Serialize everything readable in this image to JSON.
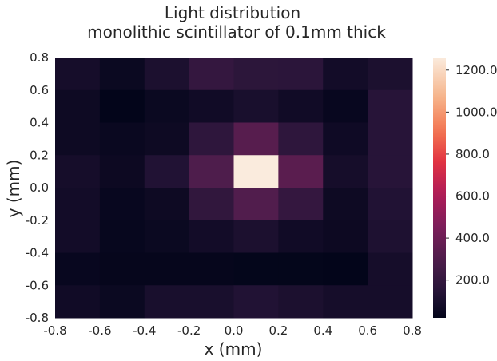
{
  "chart_data": {
    "type": "heatmap",
    "title": "Light distribution",
    "subtitle": "monolithic scintillator of 0.1mm thick",
    "xlabel": "x (mm)",
    "ylabel": "y (mm)",
    "xlim": [
      -0.8,
      0.8
    ],
    "ylim": [
      -0.8,
      0.8
    ],
    "x_ticks": [
      "-0.8",
      "-0.6",
      "-0.4",
      "-0.2",
      "0.0",
      "0.2",
      "0.4",
      "0.6",
      "0.8"
    ],
    "y_ticks": [
      "-0.8",
      "-0.6",
      "-0.4",
      "-0.2",
      "0.0",
      "0.2",
      "0.4",
      "0.6",
      "0.8"
    ],
    "x_edges": [
      -0.8,
      -0.6,
      -0.4,
      -0.2,
      0.0,
      0.2,
      0.4,
      0.6,
      0.8
    ],
    "y_edges": [
      -0.8,
      -0.6,
      -0.4,
      -0.2,
      0.0,
      0.2,
      0.4,
      0.6,
      0.8
    ],
    "values_top_to_bottom": [
      [
        90,
        50,
        110,
        200,
        170,
        165,
        80,
        110
      ],
      [
        60,
        20,
        50,
        70,
        100,
        70,
        40,
        150
      ],
      [
        60,
        45,
        60,
        180,
        330,
        180,
        65,
        150
      ],
      [
        90,
        55,
        130,
        300,
        1260,
        340,
        90,
        150
      ],
      [
        80,
        40,
        60,
        190,
        310,
        200,
        60,
        130
      ],
      [
        80,
        35,
        50,
        80,
        110,
        70,
        55,
        120
      ],
      [
        40,
        30,
        30,
        30,
        25,
        25,
        20,
        90
      ],
      [
        70,
        50,
        100,
        100,
        130,
        110,
        90,
        90
      ]
    ],
    "colorbar": {
      "min": 20,
      "max": 1260,
      "ticks": [
        "200.0",
        "400.0",
        "600.0",
        "800.0",
        "1000.0",
        "1200.0"
      ],
      "tick_values": [
        200,
        400,
        600,
        800,
        1000,
        1200
      ],
      "colormap": "rocket"
    },
    "grid": false
  }
}
